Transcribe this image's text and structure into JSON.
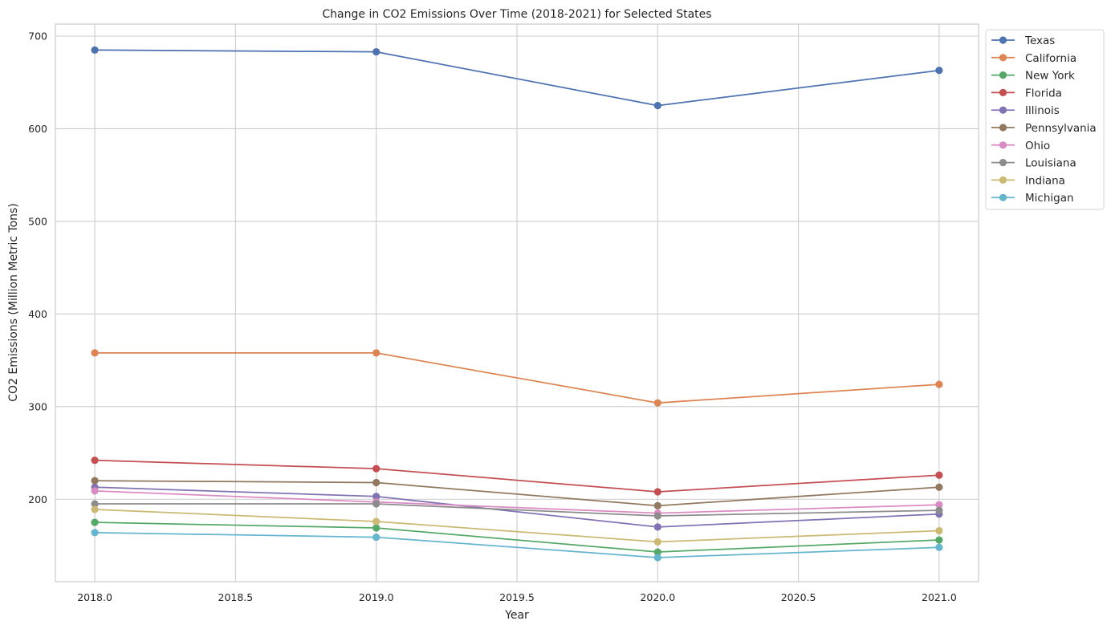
{
  "chart_data": {
    "type": "line",
    "title": "Change in CO2 Emissions Over Time (2018-2021) for Selected States",
    "xlabel": "Year",
    "ylabel": "CO2 Emissions (Million Metric Tons)",
    "x": [
      2018,
      2019,
      2020,
      2021
    ],
    "xlim": [
      2017.86,
      2021.14
    ],
    "ylim": [
      111,
      713
    ],
    "xticks": [
      2018.0,
      2018.5,
      2019.0,
      2019.5,
      2020.0,
      2020.5,
      2021.0
    ],
    "xtick_labels": [
      "2018.0",
      "2018.5",
      "2019.0",
      "2019.5",
      "2020.0",
      "2020.5",
      "2021.0"
    ],
    "yticks": [
      200,
      300,
      400,
      500,
      600,
      700
    ],
    "ytick_labels": [
      "200",
      "300",
      "400",
      "500",
      "600",
      "700"
    ],
    "grid": true,
    "legend_position": "outside-top-right",
    "series": [
      {
        "name": "Texas",
        "color": "#4c72b0",
        "values": [
          685,
          683,
          625,
          663
        ]
      },
      {
        "name": "California",
        "color": "#dd8452",
        "values": [
          358,
          358,
          304,
          324
        ]
      },
      {
        "name": "New York",
        "color": "#55a868",
        "values": [
          175,
          169,
          143,
          156
        ]
      },
      {
        "name": "Florida",
        "color": "#c44e52",
        "values": [
          242,
          233,
          208,
          226
        ]
      },
      {
        "name": "Illinois",
        "color": "#8172b3",
        "values": [
          213,
          203,
          170,
          184
        ]
      },
      {
        "name": "Pennsylvania",
        "color": "#937860",
        "values": [
          220,
          218,
          193,
          213
        ]
      },
      {
        "name": "Ohio",
        "color": "#da8bc3",
        "values": [
          209,
          197,
          185,
          194
        ]
      },
      {
        "name": "Louisiana",
        "color": "#8c8c8c",
        "values": [
          195,
          195,
          182,
          188
        ]
      },
      {
        "name": "Indiana",
        "color": "#ccb974",
        "values": [
          189,
          176,
          154,
          166
        ]
      },
      {
        "name": "Michigan",
        "color": "#64b5cd",
        "values": [
          164,
          159,
          137,
          148
        ]
      }
    ]
  }
}
